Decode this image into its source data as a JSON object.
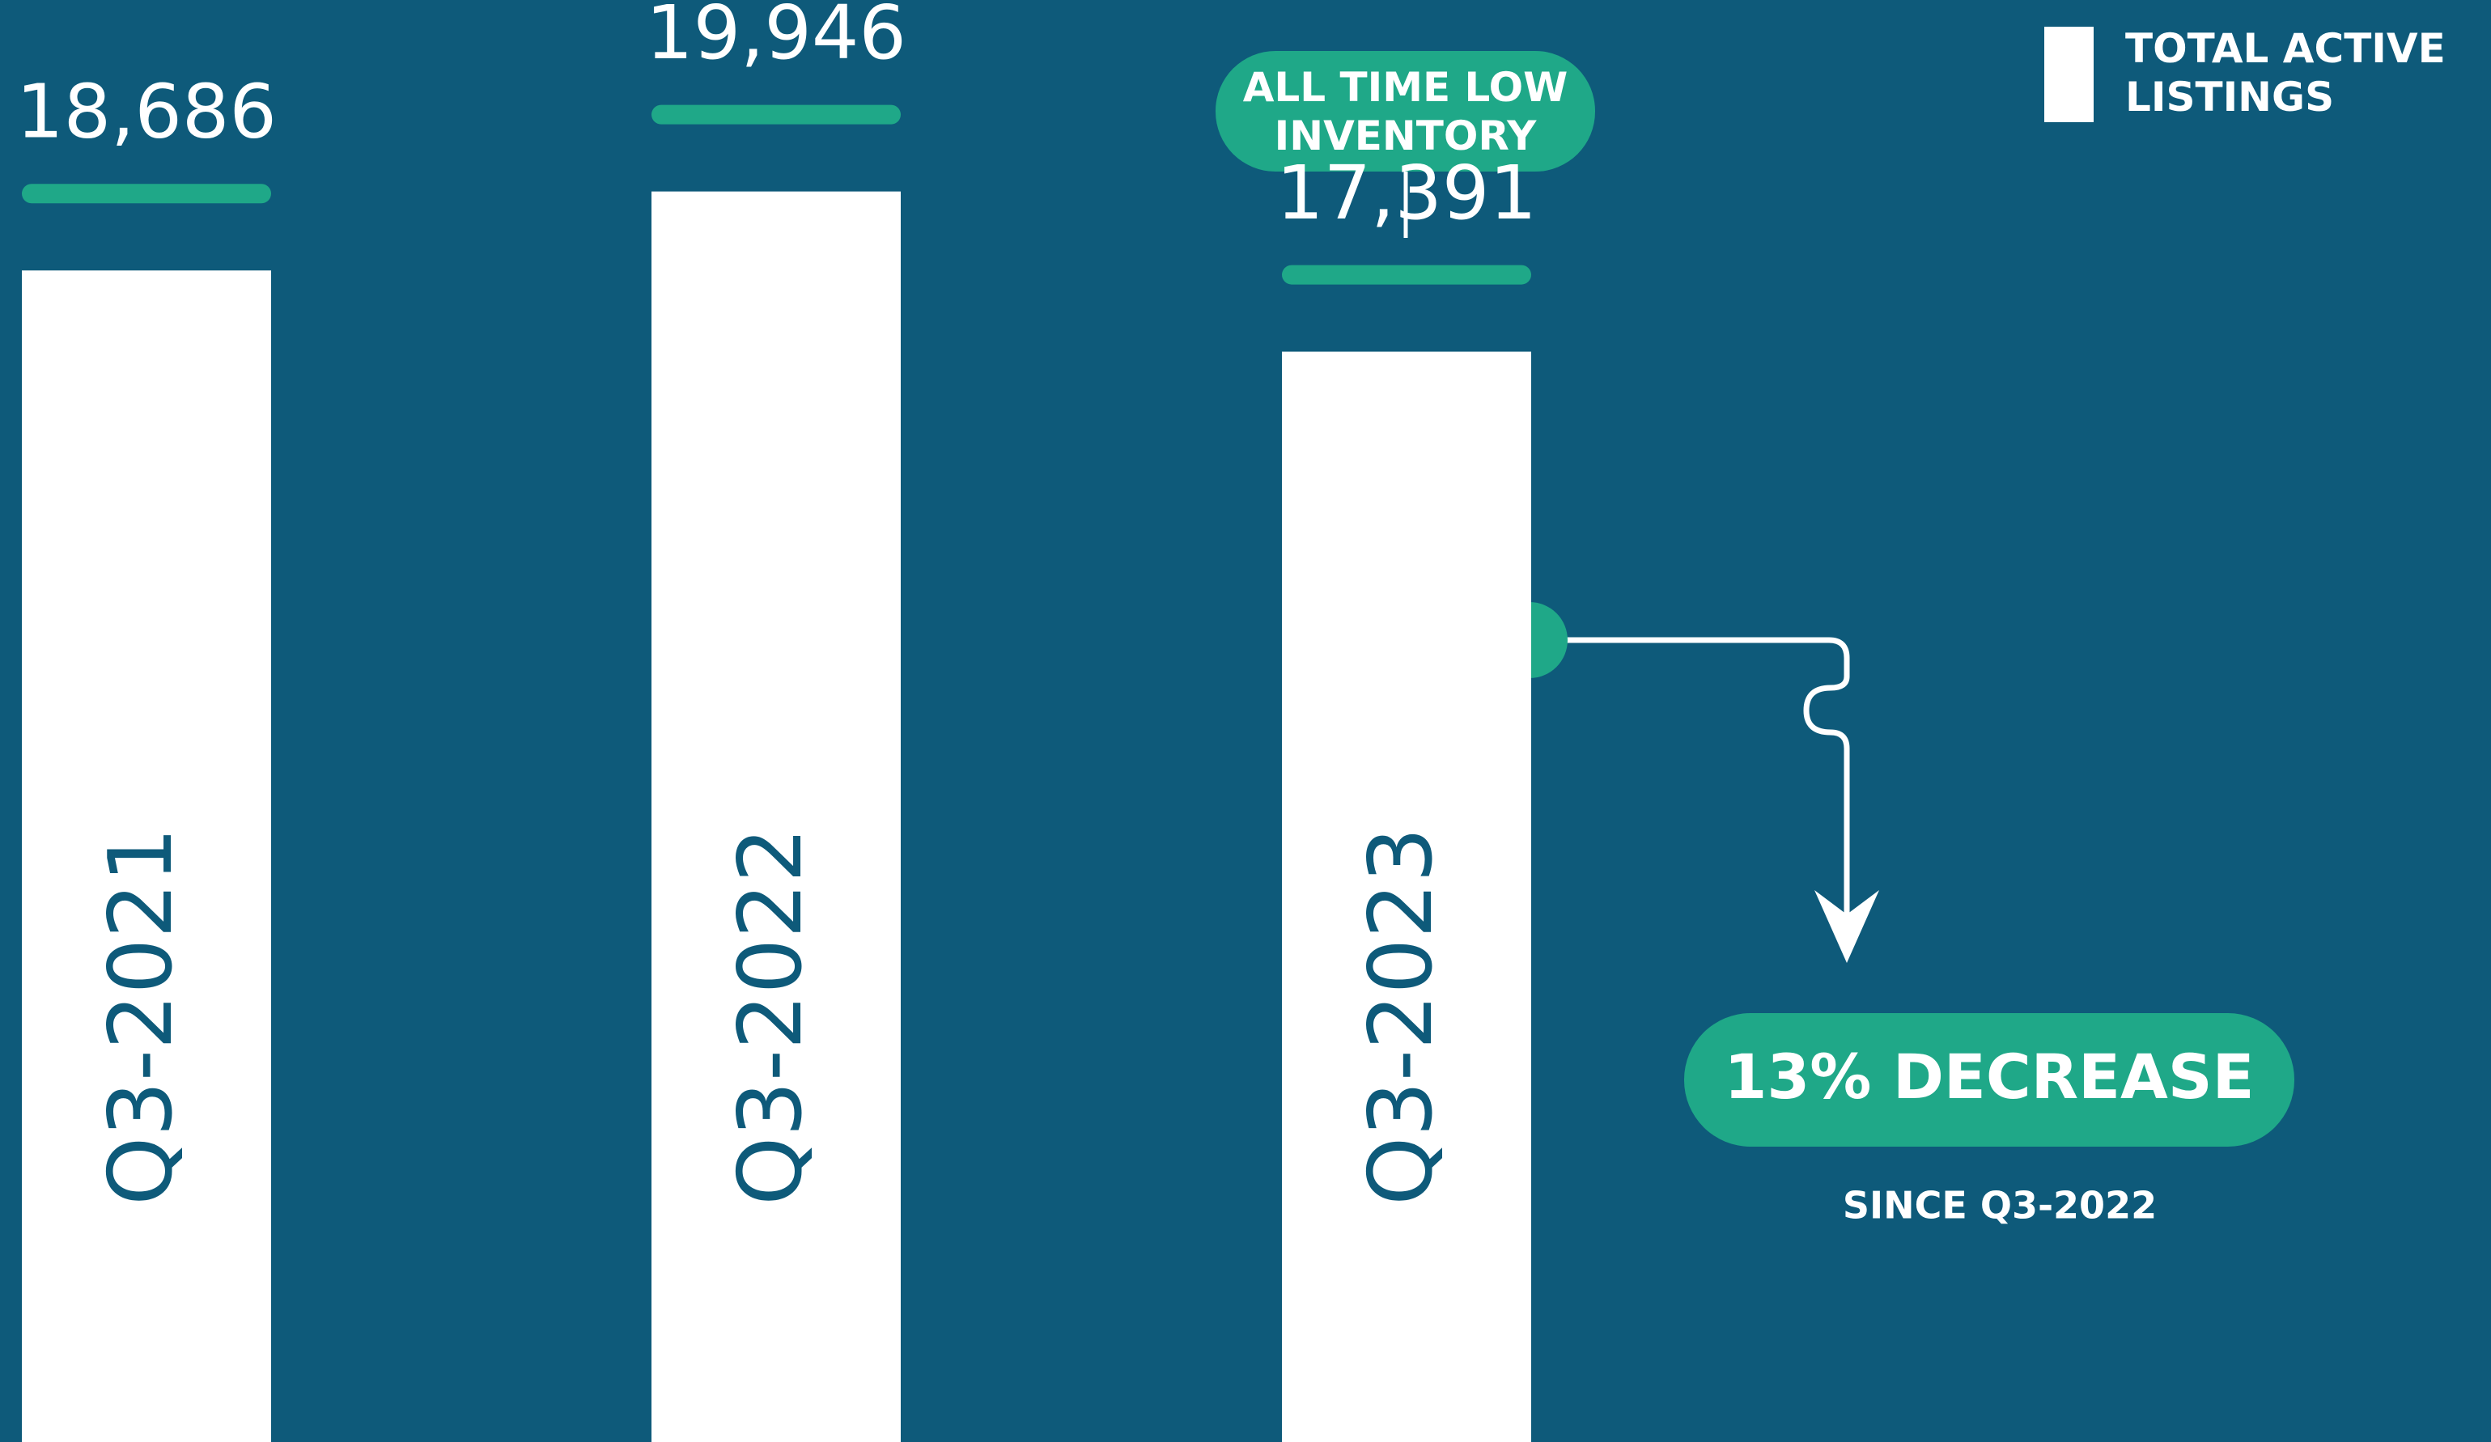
{
  "chart_data": {
    "type": "bar",
    "categories": [
      "Q3-2021",
      "Q3-2022",
      "Q3-2023"
    ],
    "series": [
      {
        "name": "TOTAL ACTIVE LISTINGS",
        "color": "#ffffff",
        "values": [
          18686,
          19946,
          17391
        ],
        "value_labels": [
          "18,686",
          "19,946",
          "17,391"
        ]
      }
    ],
    "ylim": [
      0,
      23000
    ],
    "annotations": [
      "ALL TIME LOW INVENTORY",
      "13% DECREASE",
      "SINCE Q3-2022"
    ]
  }
}
